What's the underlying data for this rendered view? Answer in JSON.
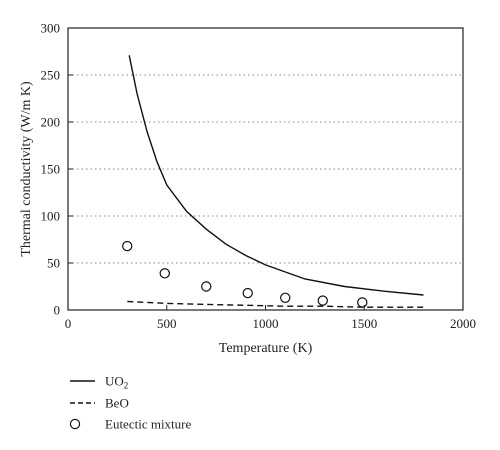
{
  "chart_data": {
    "type": "line",
    "title": "",
    "xlabel": "Temperature (K)",
    "ylabel": "Thermal conductivity (W/m K)",
    "xlim": [
      0,
      2000
    ],
    "ylim": [
      0,
      300
    ],
    "xticks": [
      0,
      500,
      1000,
      1500,
      2000
    ],
    "yticks": [
      0,
      50,
      100,
      150,
      200,
      250,
      300
    ],
    "grid": {
      "horizontal_dotted": true,
      "vertical": false
    },
    "legend_position": "below-left",
    "series": [
      {
        "name": "UO",
        "name_subscript": "2",
        "style": "solid",
        "color": "#111111",
        "x": [
          310,
          350,
          400,
          450,
          500,
          600,
          700,
          800,
          900,
          1000,
          1200,
          1400,
          1600,
          1800
        ],
        "y": [
          271,
          230,
          190,
          158,
          133,
          105,
          86,
          70,
          58,
          48,
          33,
          25,
          20,
          16
        ]
      },
      {
        "name": "BeO",
        "style": "dashed",
        "color": "#111111",
        "x": [
          300,
          500,
          700,
          900,
          1100,
          1300,
          1500,
          1800
        ],
        "y": [
          9,
          7,
          6,
          5,
          4,
          4,
          3,
          3
        ]
      },
      {
        "name": "Eutectic mixture",
        "style": "open-circle-markers",
        "color": "#111111",
        "x": [
          300,
          490,
          700,
          910,
          1100,
          1290,
          1490
        ],
        "y": [
          68,
          39,
          25,
          18,
          13,
          10,
          8
        ]
      }
    ]
  }
}
